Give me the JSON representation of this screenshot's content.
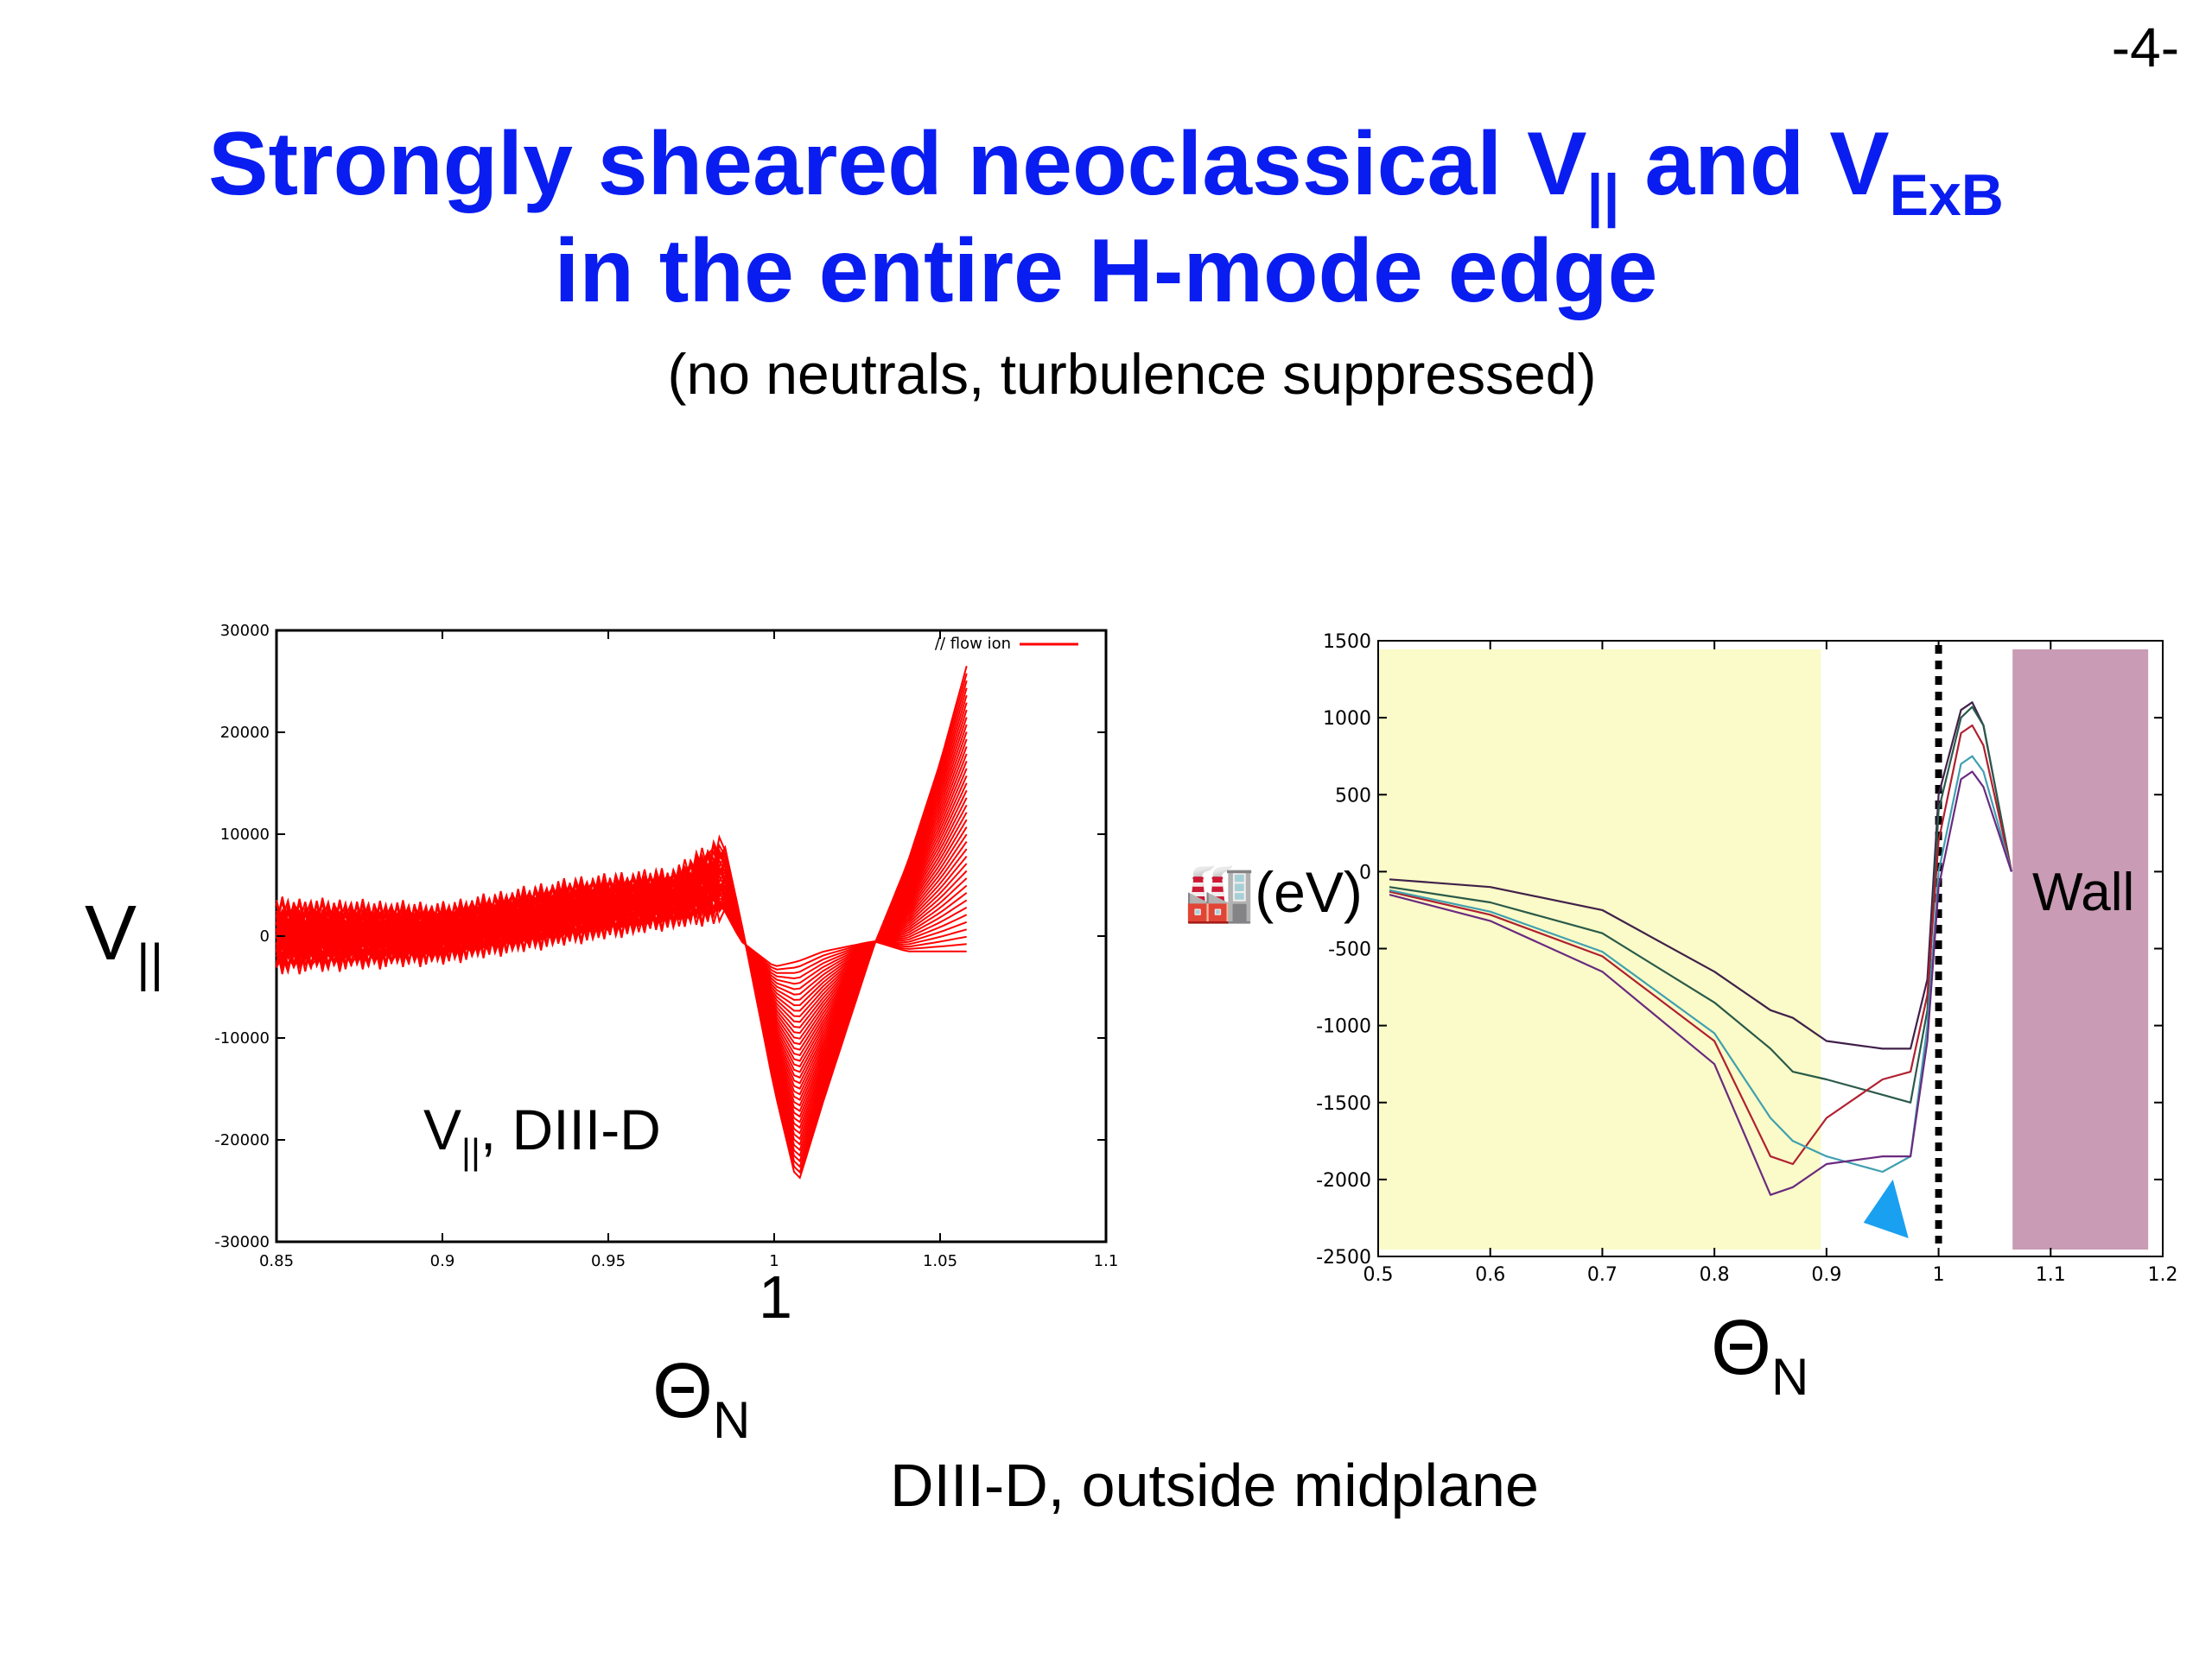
{
  "page": {
    "number": "-4-",
    "title": {
      "line1_pre": "Strongly sheared neoclassical V",
      "line1_sub1": "||",
      "line1_mid": " and V",
      "line1_sub2": "ExB",
      "line2": "in the entire H-mode edge"
    },
    "subtitle": "(no neutrals, turbulence suppressed)",
    "caption": "DIII-D, outside midplane",
    "left_ylabel": {
      "main": "V",
      "sub": "||"
    },
    "left_inner_label": {
      "main": "V",
      "sub": "||",
      "rest": ", DIII-D"
    },
    "left_extra_tick": "1",
    "left_xlabel": {
      "main": "Θ",
      "sub": "N"
    },
    "right_ylabel_symbol": "🏭",
    "right_ylabel_unit": "(eV)",
    "right_xlabel": {
      "main": "Θ",
      "sub": "N"
    },
    "wall_label": "Wall",
    "colors": {
      "title": "#0a1df0",
      "left_series": "#ff0000",
      "yellow_region": "#fafbc8",
      "wall_region": "#c99bb4",
      "arrow": "#1aa0f0"
    }
  },
  "chart_data": [
    {
      "type": "line",
      "xlim": [
        0.85,
        1.1
      ],
      "ylim": [
        -30000,
        30000
      ],
      "xticks": [
        "0.85",
        "0.9",
        "0.95",
        "1",
        "1.05",
        "1.1"
      ],
      "yticks": [
        "30000",
        "20000",
        "10000",
        "0",
        "-10000",
        "-20000",
        "-30000"
      ],
      "legend": "// flow ion",
      "legend_placement": "top-right",
      "series_envelope": {
        "x": [
          0.85,
          0.9,
          0.94,
          0.97,
          0.985,
          0.99,
          1.0,
          1.007,
          1.015,
          1.03,
          1.04,
          1.05,
          1.058
        ],
        "y_low": [
          -2500,
          -1500,
          500,
          2000,
          2500,
          -500,
          -3000,
          -2500,
          -1500,
          -500,
          -1500,
          -1500,
          -1500
        ],
        "y_high": [
          2500,
          2000,
          4500,
          5500,
          9000,
          1500,
          -15000,
          -24500,
          -16000,
          -1000,
          7000,
          17000,
          26500
        ]
      }
    },
    {
      "type": "line",
      "xlim": [
        0.5,
        1.2
      ],
      "ylim": [
        -2500,
        1500
      ],
      "xticks": [
        "0.5",
        "0.6",
        "0.7",
        "0.8",
        "0.9",
        "1",
        "1.1",
        "1.2"
      ],
      "yticks": [
        "1500",
        "1000",
        "500",
        "0",
        "-500",
        "-1000",
        "-1500",
        "-2000",
        "-2500"
      ],
      "shaded_regions": [
        {
          "x": [
            0.5,
            0.895
          ],
          "label": ""
        },
        {
          "x": [
            1.066,
            1.187
          ],
          "label": "Wall"
        }
      ],
      "separatrix_x": 1.0,
      "series": [
        {
          "color": "#40204a",
          "x": [
            0.51,
            0.6,
            0.7,
            0.8,
            0.85,
            0.87,
            0.9,
            0.95,
            0.975,
            0.99,
            1.0,
            1.02,
            1.03,
            1.04,
            1.065
          ],
          "y": [
            -50,
            -100,
            -250,
            -650,
            -900,
            -950,
            -1100,
            -1150,
            -1150,
            -700,
            500,
            1050,
            1100,
            950,
            0
          ]
        },
        {
          "color": "#2a5a4a",
          "x": [
            0.51,
            0.6,
            0.7,
            0.8,
            0.85,
            0.87,
            0.9,
            0.95,
            0.975,
            0.99,
            1.0,
            1.02,
            1.03,
            1.04,
            1.065
          ],
          "y": [
            -100,
            -200,
            -400,
            -850,
            -1150,
            -1300,
            -1350,
            -1450,
            -1500,
            -900,
            400,
            1000,
            1070,
            950,
            0
          ]
        },
        {
          "color": "#b02030",
          "x": [
            0.51,
            0.6,
            0.7,
            0.8,
            0.85,
            0.87,
            0.9,
            0.95,
            0.975,
            0.99,
            1.0,
            1.02,
            1.03,
            1.04,
            1.065
          ],
          "y": [
            -130,
            -280,
            -550,
            -1100,
            -1850,
            -1900,
            -1600,
            -1350,
            -1300,
            -800,
            200,
            900,
            950,
            820,
            0
          ]
        },
        {
          "color": "#40a0b0",
          "x": [
            0.51,
            0.6,
            0.7,
            0.8,
            0.85,
            0.87,
            0.9,
            0.95,
            0.975,
            0.99,
            1.0,
            1.02,
            1.03,
            1.04,
            1.065
          ],
          "y": [
            -120,
            -260,
            -520,
            -1050,
            -1600,
            -1750,
            -1850,
            -1950,
            -1850,
            -1000,
            0,
            700,
            750,
            650,
            0
          ]
        },
        {
          "color": "#6a2a80",
          "x": [
            0.51,
            0.6,
            0.7,
            0.8,
            0.85,
            0.87,
            0.9,
            0.95,
            0.975,
            0.99,
            1.0,
            1.02,
            1.03,
            1.04,
            1.065
          ],
          "y": [
            -150,
            -320,
            -650,
            -1250,
            -2100,
            -2050,
            -1900,
            -1850,
            -1850,
            -1100,
            -100,
            600,
            650,
            550,
            0
          ]
        }
      ]
    }
  ]
}
